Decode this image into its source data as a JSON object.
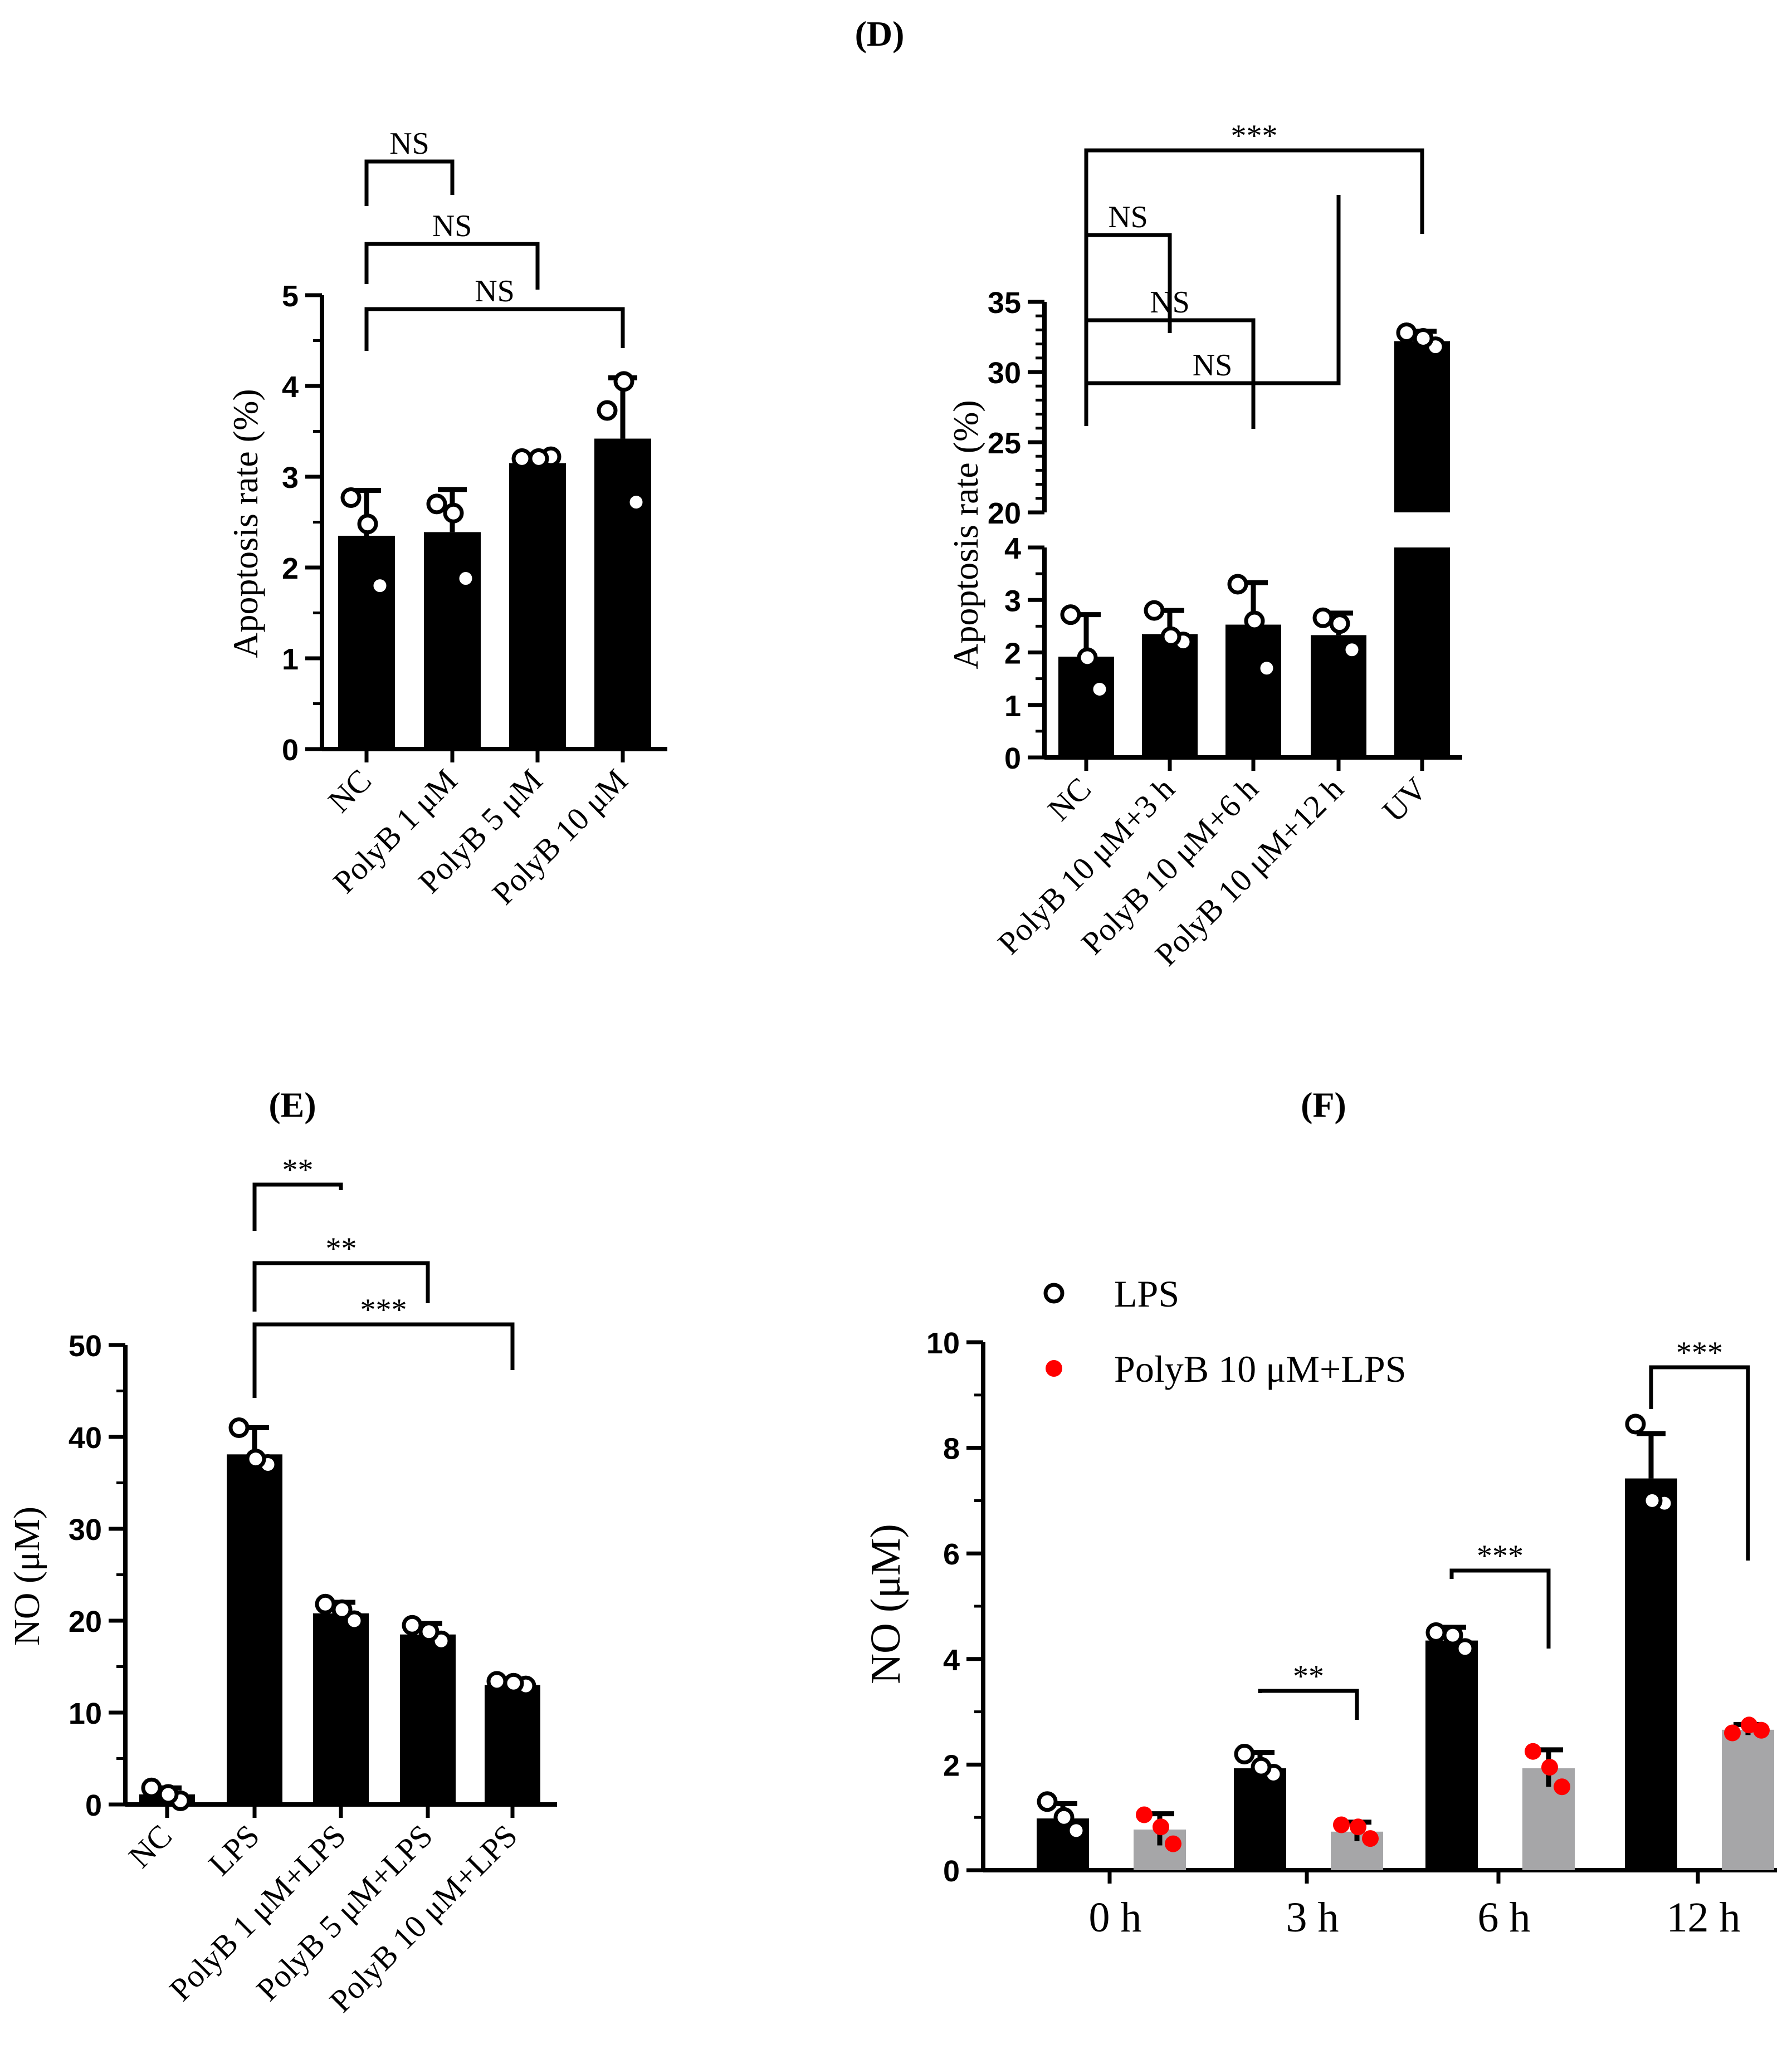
{
  "panel_titles": {
    "D": "(D)",
    "E": "(E)",
    "F": "(F)"
  },
  "colors": {
    "bar_black": "#000000",
    "bar_gray": "#a6a6a8",
    "dot_red": "#ff0000"
  },
  "chart_data": [
    {
      "id": "D1",
      "type": "bar",
      "ylabel": "Apoptosis rate (%)",
      "ylim": [
        0,
        5
      ],
      "yticks": [
        "0",
        "1",
        "2",
        "3",
        "4",
        "5"
      ],
      "categories": [
        "NC",
        "PolyB 1 μM",
        "PolyB 5 μM",
        "PolyB 10 μM"
      ],
      "values": [
        2.35,
        2.39,
        3.15,
        3.42
      ],
      "sd": [
        0.5,
        0.47,
        0.07,
        0.67
      ],
      "points": [
        [
          2.77,
          1.8,
          2.48
        ],
        [
          2.7,
          1.88,
          2.6
        ],
        [
          3.2,
          3.22,
          3.2
        ],
        [
          3.73,
          2.72,
          4.05
        ]
      ],
      "comparisons": [
        {
          "from": 0,
          "to": 1,
          "label": "NS"
        },
        {
          "from": 0,
          "to": 2,
          "label": "NS"
        },
        {
          "from": 0,
          "to": 3,
          "label": "NS"
        }
      ]
    },
    {
      "id": "D2",
      "type": "bar",
      "ylabel": "Apoptosis rate (%)",
      "axis_break": {
        "lower": [
          0,
          4
        ],
        "upper": [
          20,
          35
        ]
      },
      "yticks_lower": [
        "0",
        "1",
        "2",
        "3",
        "4"
      ],
      "yticks_upper": [
        "20",
        "25",
        "30",
        "35"
      ],
      "categories": [
        "NC",
        "PolyB 10 μM+3 h",
        "PolyB 10 μM+6 h",
        "PolyB 10 μM+12 h",
        "UV"
      ],
      "values": [
        1.92,
        2.35,
        2.53,
        2.33,
        32.2
      ],
      "sd": [
        0.8,
        0.45,
        0.8,
        0.42,
        0.7
      ],
      "points": [
        [
          2.72,
          1.3,
          1.9
        ],
        [
          2.8,
          2.2,
          2.3
        ],
        [
          3.3,
          1.7,
          2.6
        ],
        [
          2.66,
          2.05,
          2.55
        ],
        [
          32.8,
          31.8,
          32.4
        ]
      ],
      "comparisons": [
        {
          "from": 0,
          "to": 1,
          "label": "NS"
        },
        {
          "from": 0,
          "to": 2,
          "label": "NS"
        },
        {
          "from": 0,
          "to": 3,
          "label": "NS"
        },
        {
          "from": 0,
          "to": 4,
          "label": "***"
        }
      ]
    },
    {
      "id": "E",
      "type": "bar",
      "ylabel": "NO (μM)",
      "ylim": [
        0,
        50
      ],
      "yticks": [
        "0",
        "10",
        "20",
        "30",
        "40",
        "50"
      ],
      "categories": [
        "NC",
        "LPS",
        "PolyB 1 μM+LPS",
        "PolyB 5 μM+LPS",
        "PolyB 10 μM+LPS"
      ],
      "values": [
        1.1,
        38.1,
        20.8,
        18.5,
        13.0
      ],
      "sd": [
        0.7,
        2.9,
        1.2,
        1.2,
        0.4
      ],
      "points": [
        [
          1.8,
          0.4,
          1.1
        ],
        [
          41.0,
          37.0,
          37.6
        ],
        [
          21.8,
          20.0,
          21.2
        ],
        [
          19.5,
          17.8,
          18.8
        ],
        [
          13.4,
          12.9,
          13.2
        ]
      ],
      "comparisons": [
        {
          "from": 1,
          "to": 2,
          "label": "**"
        },
        {
          "from": 1,
          "to": 3,
          "label": "**"
        },
        {
          "from": 1,
          "to": 4,
          "label": "***"
        }
      ]
    },
    {
      "id": "F",
      "type": "bar",
      "ylabel": "NO (μM)",
      "ylim": [
        0,
        10
      ],
      "yticks": [
        "0",
        "2",
        "4",
        "6",
        "8",
        "10"
      ],
      "categories": [
        "0 h",
        "3 h",
        "6 h",
        "12 h"
      ],
      "legend": [
        "LPS",
        "PolyB 10 μM+LPS"
      ],
      "series": [
        {
          "name": "LPS",
          "values": [
            0.98,
            1.93,
            4.35,
            7.42
          ],
          "sd": [
            0.28,
            0.3,
            0.25,
            0.85
          ],
          "points": [
            [
              1.3,
              0.75,
              1.0
            ],
            [
              2.2,
              1.82,
              1.95
            ],
            [
              4.5,
              4.2,
              4.45
            ],
            [
              8.45,
              6.95,
              7.0
            ]
          ]
        },
        {
          "name": "PolyB 10 μM+LPS",
          "values": [
            0.77,
            0.73,
            1.93,
            2.66
          ],
          "sd": [
            0.3,
            0.18,
            0.35,
            0.1
          ],
          "points": [
            [
              1.05,
              0.5,
              0.82
            ],
            [
              0.86,
              0.6,
              0.82
            ],
            [
              2.25,
              1.58,
              1.95
            ],
            [
              2.6,
              2.65,
              2.75
            ]
          ]
        }
      ],
      "comparisons": [
        {
          "group": 1,
          "label": "**"
        },
        {
          "group": 2,
          "label": "***"
        },
        {
          "group": 3,
          "label": "***"
        }
      ]
    }
  ]
}
